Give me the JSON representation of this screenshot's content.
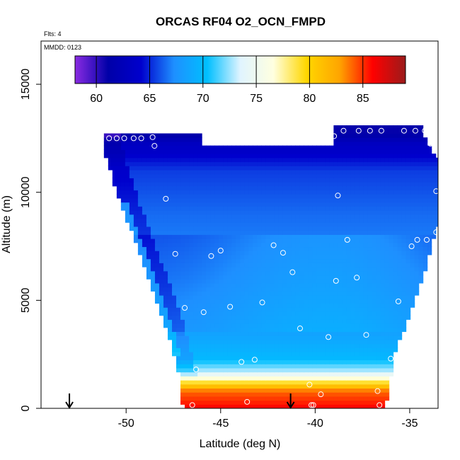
{
  "chart_data": {
    "type": "heatmap",
    "title": "ORCAS RF04 O2_OCN_FMPD",
    "annotations": {
      "flights": "Flts: 4",
      "date": "MMDD: 0123"
    },
    "xlabel": "Latitude (deg N)",
    "ylabel": "Altitude (m)",
    "xlim": [
      -54.5,
      -33.5
    ],
    "ylim": [
      0,
      17000
    ],
    "x_ticks": [
      -50,
      -45,
      -40,
      -35
    ],
    "x_tick_labels": [
      "-50",
      "-45",
      "-40",
      "-35"
    ],
    "y_ticks": [
      0,
      5000,
      10000,
      15000
    ],
    "y_tick_labels": [
      "0",
      "5000",
      "10000",
      "15000"
    ],
    "colorbar": {
      "range": [
        58,
        89
      ],
      "ticks": [
        60,
        65,
        70,
        75,
        80,
        85
      ],
      "tick_labels": [
        "60",
        "65",
        "70",
        "75",
        "80",
        "85"
      ],
      "colors": [
        "#8a2be2",
        "#0000a8",
        "#0000cd",
        "#1e90ff",
        "#00bfff",
        "#e0f4ff",
        "#ffffe0",
        "#ffd700",
        "#ffa500",
        "#ff0000",
        "#9b1b1b"
      ]
    },
    "field": {
      "value_range": [
        60,
        88
      ],
      "profile": [
        {
          "alt": 0,
          "value": 86
        },
        {
          "alt": 800,
          "value": 84
        },
        {
          "alt": 1300,
          "value": 78
        },
        {
          "alt": 1700,
          "value": 73
        },
        {
          "alt": 2300,
          "value": 70
        },
        {
          "alt": 3500,
          "value": 68.5
        },
        {
          "alt": 6000,
          "value": 67.5
        },
        {
          "alt": 9000,
          "value": 66.5
        },
        {
          "alt": 11000,
          "value": 65.5
        },
        {
          "alt": 12300,
          "value": 63
        },
        {
          "alt": 12700,
          "value": 61
        }
      ],
      "boundary_left": [
        [
          -47.0,
          0
        ],
        [
          -47.2,
          1500
        ],
        [
          -47.8,
          3500
        ],
        [
          -49.0,
          6500
        ],
        [
          -50.3,
          9500
        ],
        [
          -51.2,
          12000
        ],
        [
          -51.2,
          12700
        ]
      ],
      "boundary_right": [
        [
          -36.3,
          0
        ],
        [
          -35.8,
          2500
        ],
        [
          -34.5,
          5500
        ],
        [
          -33.5,
          8500
        ],
        [
          -33.5,
          11500
        ],
        [
          -34.3,
          12700
        ],
        [
          -34.3,
          13000
        ]
      ],
      "top_left": [
        [
          -51.2,
          12700
        ],
        [
          -46.0,
          12700
        ]
      ],
      "top_right": [
        [
          -39.0,
          13000
        ],
        [
          -34.3,
          13000
        ]
      ]
    },
    "observations": [
      {
        "x": -50.9,
        "y": 12500
      },
      {
        "x": -50.5,
        "y": 12500
      },
      {
        "x": -50.1,
        "y": 12500
      },
      {
        "x": -49.6,
        "y": 12500
      },
      {
        "x": -49.2,
        "y": 12500
      },
      {
        "x": -48.6,
        "y": 12550
      },
      {
        "x": -48.5,
        "y": 12150
      },
      {
        "x": -47.9,
        "y": 9700
      },
      {
        "x": -47.4,
        "y": 7150
      },
      {
        "x": -46.9,
        "y": 4650
      },
      {
        "x": -46.3,
        "y": 1800
      },
      {
        "x": -45.9,
        "y": 4450
      },
      {
        "x": -45.5,
        "y": 7050
      },
      {
        "x": -45.0,
        "y": 7300
      },
      {
        "x": -44.5,
        "y": 4700
      },
      {
        "x": -43.9,
        "y": 2150
      },
      {
        "x": -43.2,
        "y": 2250
      },
      {
        "x": -42.8,
        "y": 4900
      },
      {
        "x": -43.6,
        "y": 300
      },
      {
        "x": -42.2,
        "y": 7550
      },
      {
        "x": -41.7,
        "y": 7200
      },
      {
        "x": -41.2,
        "y": 6300
      },
      {
        "x": -40.8,
        "y": 3700
      },
      {
        "x": -40.3,
        "y": 1100
      },
      {
        "x": -40.2,
        "y": 150
      },
      {
        "x": -39.7,
        "y": 650
      },
      {
        "x": -39.3,
        "y": 3300
      },
      {
        "x": -39.0,
        "y": 12600
      },
      {
        "x": -38.9,
        "y": 5900
      },
      {
        "x": -38.8,
        "y": 9850
      },
      {
        "x": -38.5,
        "y": 12850
      },
      {
        "x": -38.3,
        "y": 7800
      },
      {
        "x": -37.8,
        "y": 6050
      },
      {
        "x": -37.7,
        "y": 12850
      },
      {
        "x": -37.3,
        "y": 3400
      },
      {
        "x": -37.1,
        "y": 12850
      },
      {
        "x": -36.7,
        "y": 800
      },
      {
        "x": -36.6,
        "y": 150
      },
      {
        "x": -36.5,
        "y": 12850
      },
      {
        "x": -36.0,
        "y": 2300
      },
      {
        "x": -35.6,
        "y": 4950
      },
      {
        "x": -35.3,
        "y": 12850
      },
      {
        "x": -34.7,
        "y": 12850
      },
      {
        "x": -34.9,
        "y": 7500
      },
      {
        "x": -34.6,
        "y": 7800
      },
      {
        "x": -34.2,
        "y": 12850
      },
      {
        "x": -34.1,
        "y": 7800
      },
      {
        "x": -33.9,
        "y": 12250
      },
      {
        "x": -33.6,
        "y": 10050
      },
      {
        "x": -33.6,
        "y": 8150
      },
      {
        "x": -46.5,
        "y": 150
      },
      {
        "x": -40.1,
        "y": 150
      }
    ],
    "markers": [
      {
        "x": -53.0,
        "symbol": "arrow-down"
      },
      {
        "x": -41.3,
        "symbol": "arrow-down"
      }
    ]
  }
}
